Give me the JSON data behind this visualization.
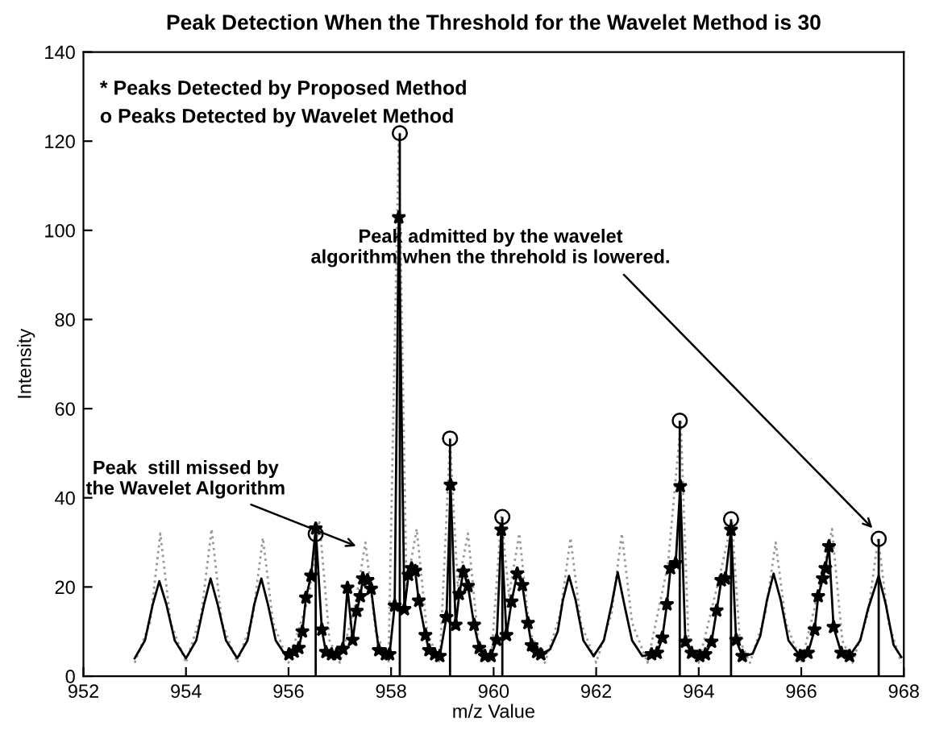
{
  "chart_data": {
    "type": "line",
    "title": "Peak Detection When the Threshold for the Wavelet Method is 30",
    "xlabel": "m/z Value",
    "ylabel": "Intensity",
    "xlim": [
      952,
      968
    ],
    "xticks": [
      952,
      954,
      956,
      958,
      960,
      962,
      964,
      966,
      968
    ],
    "ylim": [
      0,
      140
    ],
    "yticks": [
      0,
      20,
      40,
      60,
      80,
      100,
      120,
      140
    ],
    "grid": false,
    "series": [
      {
        "type": "line",
        "color": "#999999",
        "line_style": "dotted",
        "marker": "none",
        "x": [
          953.0,
          953.3,
          953.5,
          953.7,
          954.0,
          954.3,
          954.5,
          954.7,
          955.0,
          955.3,
          955.5,
          955.7,
          956.0,
          956.4,
          956.6,
          956.8,
          957.0,
          957.3,
          957.5,
          957.7,
          957.95,
          958.15,
          958.3,
          958.5,
          958.7,
          958.95,
          959.15,
          959.3,
          959.5,
          959.7,
          959.95,
          960.15,
          960.3,
          960.5,
          960.7,
          961.0,
          961.3,
          961.5,
          961.7,
          962.0,
          962.3,
          962.5,
          962.7,
          963.0,
          963.4,
          963.65,
          963.8,
          964.0,
          964.4,
          964.65,
          964.8,
          965.0,
          965.3,
          965.5,
          965.7,
          966.0,
          966.4,
          966.6,
          966.8,
          967.0,
          967.3,
          967.5,
          967.7,
          967.95
        ],
        "values": [
          3,
          12,
          32,
          12,
          3,
          14,
          33,
          12,
          3,
          13,
          31,
          12,
          3,
          18,
          35,
          8,
          3,
          16,
          30,
          10,
          3,
          121,
          20,
          33,
          10,
          3,
          53,
          20,
          32,
          8,
          3,
          36,
          18,
          32,
          10,
          3,
          14,
          31,
          12,
          3,
          14,
          32,
          12,
          3,
          25,
          57,
          8,
          3,
          22,
          35,
          8,
          3,
          14,
          30,
          12,
          3,
          22,
          33,
          8,
          3,
          14,
          31,
          12,
          3
        ]
      },
      {
        "color": "#000000",
        "line_style": "solid",
        "marker": "none",
        "x": [
          953.0,
          953.2,
          953.35,
          953.48,
          953.62,
          953.78,
          954.0,
          954.2,
          954.35,
          954.48,
          954.62,
          954.78,
          955.0,
          955.2,
          955.33,
          955.47,
          955.6,
          955.75,
          955.95,
          956.01,
          956.11,
          956.2,
          956.27,
          956.34,
          956.44,
          956.53,
          956.65,
          956.73,
          956.84,
          956.94,
          957.06,
          957.15,
          957.25,
          957.33,
          957.4,
          957.45,
          957.54,
          957.61,
          957.76,
          957.89,
          957.97,
          958.07,
          958.15,
          958.26,
          958.34,
          958.4,
          958.47,
          958.54,
          958.67,
          958.74,
          958.85,
          958.95,
          959.08,
          959.16,
          959.26,
          959.33,
          959.41,
          959.5,
          959.62,
          959.72,
          959.83,
          959.95,
          960.06,
          960.15,
          960.25,
          960.35,
          960.46,
          960.56,
          960.67,
          960.74,
          960.84,
          960.92,
          961.1,
          961.25,
          961.35,
          961.47,
          961.6,
          961.75,
          961.95,
          962.15,
          962.3,
          962.42,
          962.55,
          962.7,
          962.9,
          963.08,
          963.19,
          963.29,
          963.38,
          963.45,
          963.55,
          963.64,
          963.74,
          963.86,
          964.02,
          964.13,
          964.25,
          964.35,
          964.44,
          964.52,
          964.63,
          964.73,
          964.85,
          965.05,
          965.2,
          965.33,
          965.46,
          965.6,
          965.75,
          965.98,
          966.13,
          966.26,
          966.33,
          966.42,
          966.47,
          966.54,
          966.63,
          966.78,
          966.94,
          967.15,
          967.3,
          967.51,
          967.65,
          967.8,
          967.95
        ],
        "values": [
          4,
          8,
          16,
          21.3,
          16,
          8,
          4,
          8,
          16,
          21.9,
          16,
          8,
          4,
          8,
          16,
          21.9,
          16,
          8,
          4.5,
          4.9,
          5.5,
          6.3,
          10.0,
          17.6,
          22.5,
          33.1,
          10.4,
          5.4,
          4.9,
          4.9,
          6.1,
          19.8,
          8.1,
          14.6,
          17.9,
          21.9,
          21.5,
          19.6,
          5.8,
          4.9,
          4.9,
          15.8,
          102.9,
          15.0,
          22.7,
          24.2,
          23.6,
          16.9,
          9.2,
          5.8,
          4.9,
          4.5,
          13.2,
          42.9,
          11.5,
          18.4,
          23.4,
          20.2,
          11.5,
          6.3,
          4.5,
          4.5,
          8.1,
          32.8,
          9.2,
          16.7,
          23.0,
          20.4,
          11.9,
          6.9,
          5.4,
          4.9,
          6,
          10,
          17,
          22.5,
          17,
          8,
          4.5,
          8,
          16,
          23.3,
          16,
          8,
          4.5,
          4.9,
          5.2,
          8.6,
          16.1,
          24.2,
          25.3,
          42.6,
          7.7,
          5.2,
          4.5,
          4.9,
          7.7,
          14.7,
          21.5,
          21.9,
          32.8,
          8.1,
          4.5,
          5,
          9,
          17,
          23.0,
          17,
          8,
          4.5,
          5.2,
          10.4,
          17.9,
          21.9,
          24.2,
          29.1,
          11.0,
          5.2,
          4.5,
          8,
          15,
          22.5,
          16,
          7,
          4.3
        ]
      },
      {
        "type": "scatter",
        "color": "#000000",
        "marker": "star",
        "x": [
          956.01,
          956.11,
          956.2,
          956.27,
          956.34,
          956.44,
          956.53,
          956.65,
          956.73,
          956.84,
          956.94,
          957.06,
          957.15,
          957.25,
          957.33,
          957.4,
          957.45,
          957.54,
          957.61,
          957.76,
          957.89,
          957.97,
          958.07,
          958.15,
          958.26,
          958.34,
          958.4,
          958.47,
          958.54,
          958.67,
          958.74,
          958.85,
          958.95,
          959.08,
          959.16,
          959.26,
          959.33,
          959.41,
          959.5,
          959.62,
          959.72,
          959.83,
          959.95,
          960.06,
          960.15,
          960.25,
          960.35,
          960.46,
          960.56,
          960.67,
          960.74,
          960.84,
          960.92,
          963.08,
          963.19,
          963.29,
          963.38,
          963.45,
          963.55,
          963.64,
          963.74,
          963.86,
          964.02,
          964.13,
          964.25,
          964.35,
          964.44,
          964.52,
          964.63,
          964.73,
          964.85,
          965.98,
          966.13,
          966.26,
          966.33,
          966.42,
          966.47,
          966.54,
          966.63,
          966.78,
          966.94
        ],
        "values": [
          4.9,
          5.5,
          6.3,
          10.0,
          17.6,
          22.5,
          33.1,
          10.4,
          5.4,
          4.9,
          4.9,
          6.1,
          19.8,
          8.1,
          14.6,
          17.9,
          21.9,
          21.5,
          19.6,
          5.8,
          4.9,
          4.9,
          15.8,
          102.9,
          15.0,
          22.7,
          24.2,
          23.6,
          16.9,
          9.2,
          5.8,
          4.9,
          4.5,
          13.2,
          42.9,
          11.5,
          18.4,
          23.4,
          20.2,
          11.5,
          6.3,
          4.5,
          4.5,
          8.1,
          32.8,
          9.2,
          16.7,
          23.0,
          20.4,
          11.9,
          6.9,
          5.4,
          4.9,
          4.9,
          5.2,
          8.6,
          16.1,
          24.2,
          25.3,
          42.6,
          7.7,
          5.2,
          4.5,
          4.9,
          7.7,
          14.7,
          21.5,
          21.9,
          32.8,
          8.1,
          4.5,
          4.5,
          5.2,
          10.4,
          17.9,
          21.9,
          24.2,
          29.1,
          11.0,
          5.2,
          4.5
        ]
      },
      {
        "type": "lollipop",
        "color": "#000000",
        "marker": "circle",
        "x": [
          956.53,
          958.17,
          959.15,
          960.17,
          963.63,
          964.63,
          967.51
        ],
        "values": [
          31.9,
          121.8,
          53.3,
          35.7,
          57.3,
          35.2,
          30.8
        ]
      }
    ],
    "annotations": [
      "* Peaks Detected by Proposed Method",
      "o Peaks Detected by Wavelet Method",
      {
        "text": "Peak  still missed by\nthe Wavelet Algorithm",
        "x": 957.4,
        "y": 28.8
      },
      {
        "text": "Peak admitted by the wavelet\nalgorithm when the threhold is lowered.",
        "x": 967.45,
        "y": 32.5
      }
    ]
  }
}
